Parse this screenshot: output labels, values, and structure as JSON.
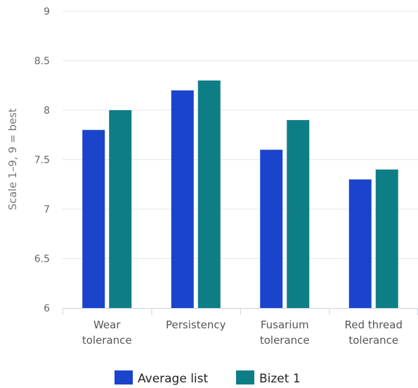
{
  "chart_data": {
    "type": "bar",
    "categories": [
      [
        "Wear",
        "tolerance"
      ],
      [
        "Persistency"
      ],
      [
        "Fusarium",
        "tolerance"
      ],
      [
        "Red thread",
        "tolerance"
      ]
    ],
    "series": [
      {
        "name": "Average list",
        "color": "#1a44cc",
        "values": [
          7.8,
          8.2,
          7.6,
          7.3
        ]
      },
      {
        "name": "Bizet 1",
        "color": "#0e7e86",
        "values": [
          8.0,
          8.3,
          7.9,
          7.4
        ]
      }
    ],
    "ylabel": "Scale 1–9, 9 = best",
    "ylim": [
      6,
      9
    ],
    "yticks": [
      "6",
      "6.5",
      "7",
      "7.5",
      "8",
      "8.5",
      "9"
    ],
    "grid": true,
    "legend": "bottom"
  }
}
